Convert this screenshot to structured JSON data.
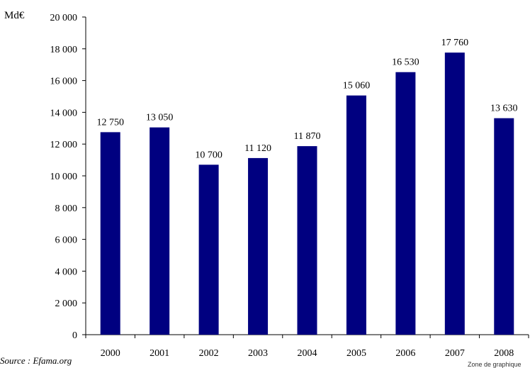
{
  "chart_data": {
    "type": "bar",
    "title": "",
    "ylabel": "Md€",
    "xlabel": "",
    "categories": [
      "2000",
      "2001",
      "2002",
      "2003",
      "2004",
      "2005",
      "2006",
      "2007",
      "2008"
    ],
    "values": [
      12750,
      13050,
      10700,
      11120,
      11870,
      15060,
      16530,
      17760,
      13630
    ],
    "data_labels": [
      "12 750",
      "13 050",
      "10 700",
      "11 120",
      "11 870",
      "15 060",
      "16 530",
      "17 760",
      "13 630"
    ],
    "ylim": [
      0,
      20000
    ],
    "yticks": [
      0,
      2000,
      4000,
      6000,
      8000,
      10000,
      12000,
      14000,
      16000,
      18000,
      20000
    ],
    "ytick_labels": [
      "0",
      "2 000",
      "4 000",
      "6 000",
      "8 000",
      "10 000",
      "12 000",
      "14 000",
      "16 000",
      "18 000",
      "20 000"
    ],
    "grid": false,
    "legend": "none",
    "bar_color": "#000080"
  },
  "source": "Source : Efama.org",
  "zone_label": "Zone de graphique"
}
